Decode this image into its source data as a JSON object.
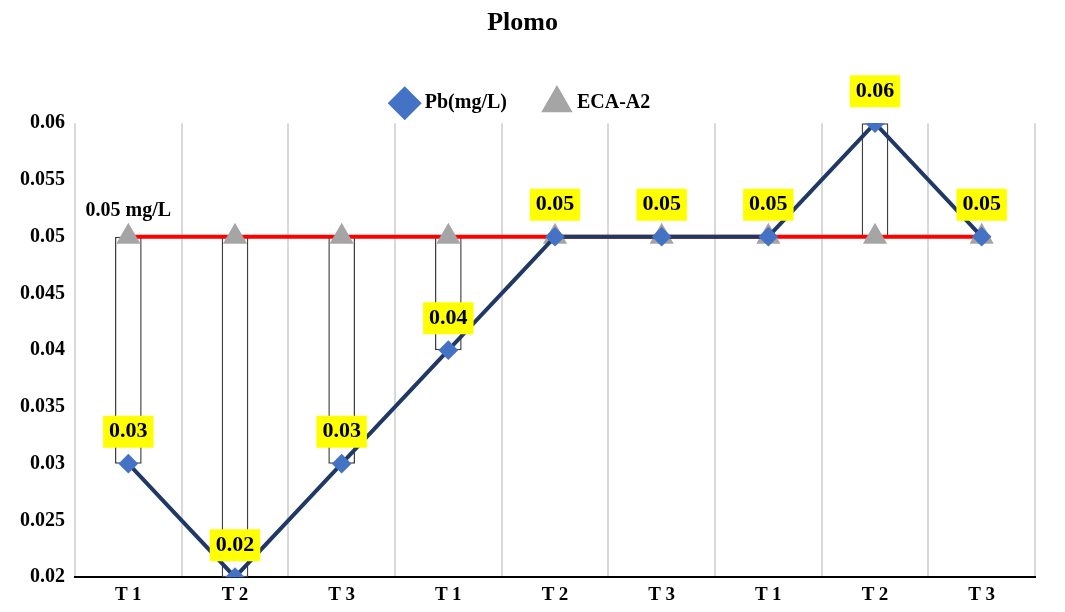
{
  "chart_data": {
    "type": "line",
    "title": "Plomo",
    "categories": [
      "T 1",
      "T 2",
      "T 3",
      "T 1",
      "T 2",
      "T 3",
      "T 1",
      "T 2",
      "T 3"
    ],
    "series": [
      {
        "name": "Pb(mg/L)",
        "color": "#1f3864",
        "marker": "diamond",
        "values": [
          0.03,
          0.02,
          0.03,
          0.04,
          0.05,
          0.05,
          0.05,
          0.06,
          0.05
        ],
        "value_labels": [
          "0.03",
          "0.02",
          "0.03",
          "0.04",
          "0.05",
          "0.05",
          "0.05",
          "0.06",
          "0.05"
        ]
      },
      {
        "name": "ECA-A2",
        "color": "#ff0000",
        "marker": "triangle",
        "values": [
          0.05,
          0.05,
          0.05,
          0.05,
          0.05,
          0.05,
          0.05,
          0.05,
          0.05
        ],
        "value_labels": [
          "0.05 mg/L",
          null,
          null,
          null,
          null,
          null,
          null,
          null,
          null
        ]
      },
      {
        "type": "bar",
        "color": "#ffffff",
        "base": [
          0.03,
          0.02,
          0.03,
          0.04,
          null,
          null,
          null,
          0.05,
          null
        ],
        "values": [
          0.02,
          0.03,
          0.02,
          0.01,
          null,
          null,
          null,
          0.01,
          null
        ]
      }
    ],
    "ylim": [
      0.02,
      0.06
    ],
    "yticks": [
      0.02,
      0.025,
      0.03,
      0.035,
      0.04,
      0.045,
      0.05,
      0.055,
      0.06
    ],
    "grid": "x",
    "legend": "top"
  }
}
